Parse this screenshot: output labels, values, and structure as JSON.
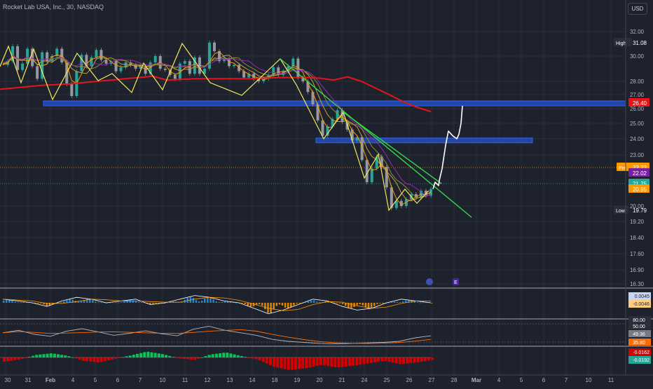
{
  "header": {
    "symbol_line": "Rocket Lab USA, Inc., 30, NASDAQ",
    "currency": "USD"
  },
  "colors": {
    "background": "#1e222d",
    "grid": "#2a2e39",
    "text": "#b2b5be",
    "candle_up": "#26a69a",
    "candle_down": "#9598a1",
    "zigzag": "#f2e85c",
    "trendline": "#37d64a",
    "ma_long": "#e5151b",
    "zone": "#2962ff",
    "projection": "#ffffff",
    "macd_line": "#2196f3",
    "macd_signal": "#ff9800",
    "rsi_line": "#b2b5be",
    "rsi_signal": "#ff6d00",
    "osc_up": "#00c853",
    "osc_down": "#d50000"
  },
  "chart_data": {
    "type": "line",
    "title": "Rocket Lab USA, Inc., 30, NASDAQ",
    "x_ticks": [
      "30",
      "31",
      "Feb",
      "4",
      "5",
      "6",
      "7",
      "10",
      "11",
      "12",
      "13",
      "14",
      "18",
      "19",
      "20",
      "21",
      "24",
      "25",
      "26",
      "27",
      "28",
      "Mar",
      "4",
      "5",
      "6",
      "7",
      "10",
      "11"
    ],
    "y_ticks": [
      32.0,
      30.0,
      28.0,
      27.0,
      26.0,
      25.0,
      24.0,
      23.0,
      20.0,
      19.2,
      18.4,
      17.6,
      16.9,
      16.3
    ],
    "ylim": [
      16.3,
      32.0
    ],
    "price_path": [
      29.3,
      29.6,
      30.8,
      28.9,
      29.4,
      30.6,
      29.2,
      28.2,
      30.3,
      29.6,
      30.0,
      30.6,
      29.5,
      27.8,
      26.9,
      28.8,
      30.1,
      29.2,
      29.9,
      30.5,
      29.7,
      29.4,
      29.6,
      28.8,
      29.1,
      29.5,
      29.3,
      29.0,
      29.2,
      28.6,
      29.5,
      30.0,
      29.0,
      28.9,
      28.5,
      28.2,
      29.4,
      29.6,
      28.6,
      29.9,
      28.6,
      29.0,
      31.1,
      30.4,
      29.6,
      29.8,
      29.2,
      29.3,
      28.8,
      28.3,
      28.6,
      28.2,
      28.0,
      28.2,
      28.5,
      29.1,
      28.5,
      28.8,
      29.2,
      29.8,
      28.3,
      28.0,
      27.2,
      26.3,
      25.2,
      24.2,
      24.8,
      25.3,
      25.9,
      25.1,
      24.6,
      23.9,
      24.1,
      22.7,
      21.4,
      22.2,
      22.9,
      22.3,
      21.1,
      19.9,
      20.3,
      20.0,
      20.4,
      20.7,
      20.5,
      20.9,
      20.6,
      21.0
    ],
    "ma_long": [
      28.0,
      28.1,
      28.2,
      28.3,
      28.35,
      28.4,
      28.5,
      28.6,
      28.7,
      28.8,
      28.9,
      29.0,
      29.1,
      29.15,
      29.2,
      29.2,
      29.2,
      29.2,
      29.2,
      29.25,
      29.3,
      29.3,
      29.3,
      29.25,
      29.1,
      28.95,
      28.6,
      28.1,
      27.6,
      27.1,
      26.7,
      26.4
    ],
    "price_labels": [
      {
        "label": "High",
        "value": "31.08"
      },
      {
        "label": "",
        "value": "26.40"
      },
      {
        "label": "Pre",
        "value": "22.22"
      },
      {
        "label": "",
        "value": "22.02"
      },
      {
        "label": "",
        "value": "21.25"
      },
      {
        "label": "",
        "value": "20.95"
      },
      {
        "label": "Low",
        "value": "19.79"
      }
    ],
    "zones": [
      {
        "name": "upper zone",
        "low": 26.2,
        "high": 26.55
      },
      {
        "name": "lower zone",
        "low": 23.75,
        "high": 24.05
      }
    ],
    "trendline": {
      "from": 29.9,
      "to": 19.5
    },
    "projection": [
      21.0,
      21.4,
      21.2,
      21.5,
      22.2,
      23.6,
      24.5,
      24.2,
      24.0,
      24.3,
      25.0,
      26.2
    ],
    "macd": {
      "line": [
        0.02,
        0.01,
        0.0,
        -0.02,
        0.01,
        0.03,
        0.02,
        0.0,
        0.01,
        0.02,
        -0.01,
        0.0,
        0.02,
        0.04,
        0.03,
        0.01,
        0.0,
        -0.03,
        -0.06,
        -0.04,
        -0.01,
        0.02,
        0.01,
        -0.02,
        -0.04,
        -0.03,
        0.0,
        0.02,
        0.01,
        0.0
      ],
      "labels": [
        "0.0045",
        "-0.0046"
      ]
    },
    "rsi": {
      "line": [
        55,
        60,
        52,
        48,
        58,
        63,
        57,
        50,
        54,
        59,
        53,
        49,
        62,
        68,
        60,
        55,
        50,
        42,
        38,
        36,
        34,
        33,
        34,
        35,
        36,
        38,
        45,
        49
      ],
      "labels": [
        "80.00",
        "50.00",
        "49.36",
        "35.80"
      ]
    },
    "osc": {
      "values": [
        -1,
        -0.5,
        0.6,
        1.0,
        0.4,
        -0.8,
        -1.2,
        -0.3,
        0.5,
        1.4,
        0.8,
        -0.2,
        -0.6,
        0.7,
        1.2,
        0.3,
        -0.5,
        -2.2,
        -3.0,
        -2.6,
        -1.8,
        -2.4,
        -2.0,
        -1.4,
        -0.8,
        -1.6,
        -1.2,
        -0.6
      ],
      "labels": [
        "-0.0162",
        "-0.0192"
      ]
    },
    "events": [
      "E"
    ]
  }
}
